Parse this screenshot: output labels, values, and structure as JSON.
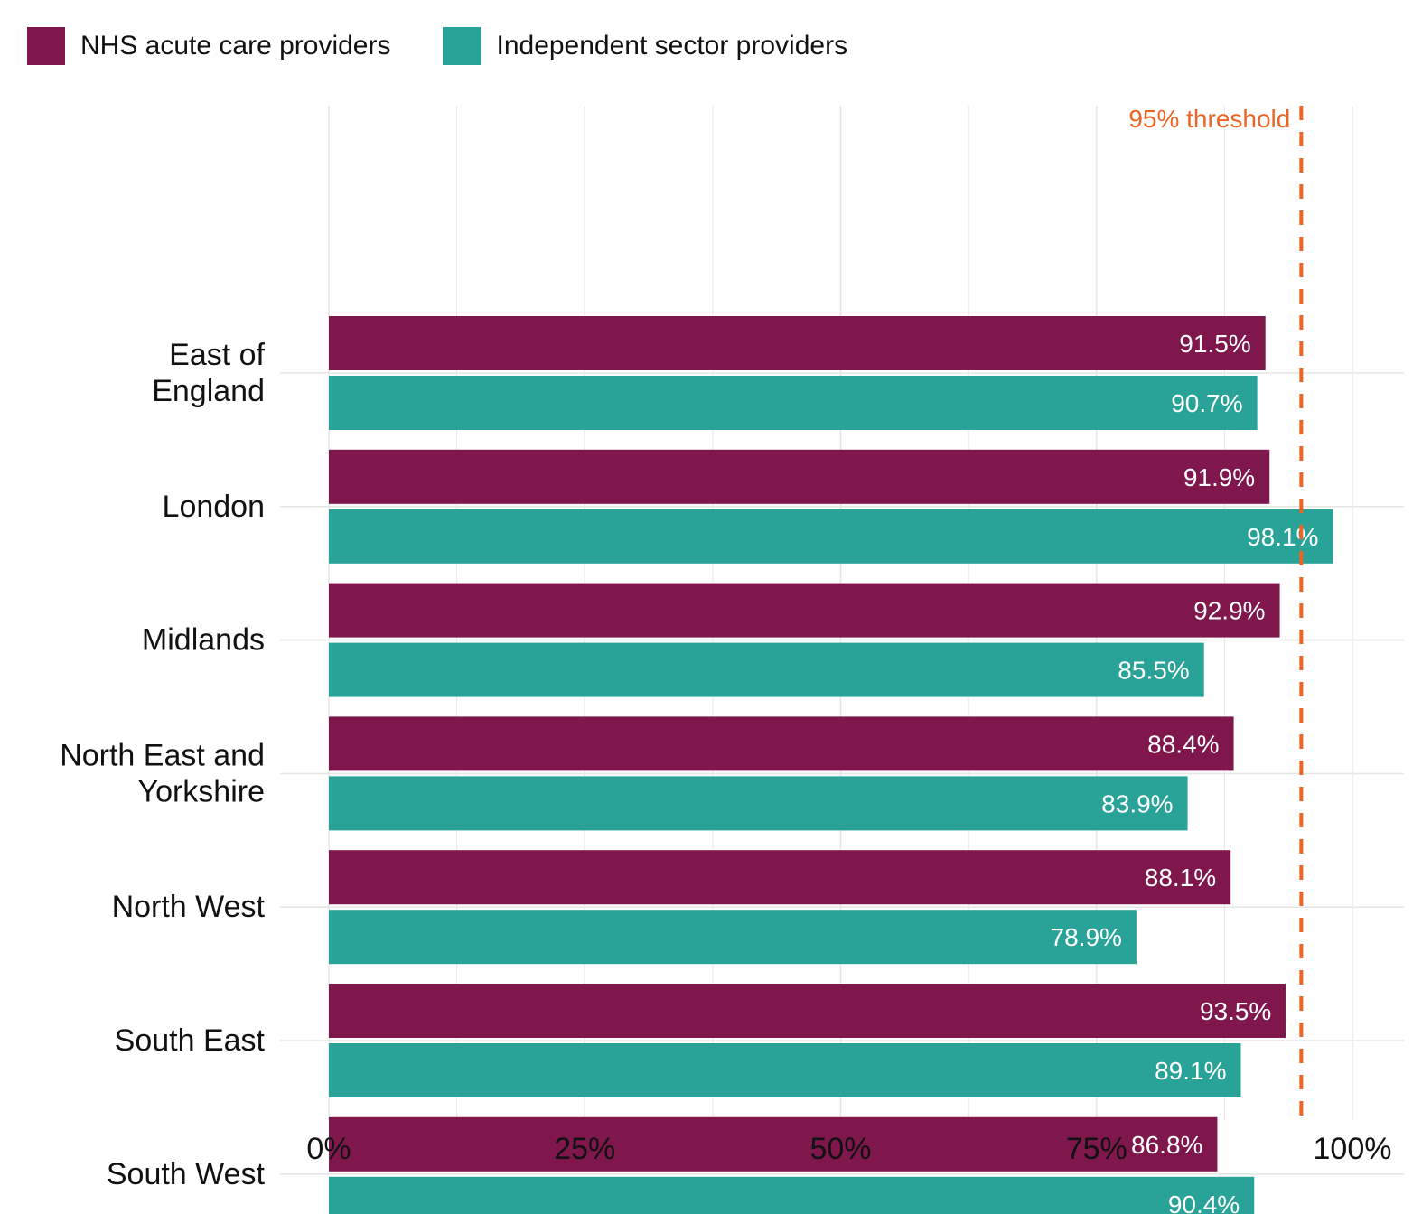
{
  "colors": {
    "nhs": "#7F174D",
    "independent": "#29A397",
    "threshold": "#EB6526",
    "grid": "#E6E6E6",
    "bar_label": "#FFFFFF",
    "text": "#111111"
  },
  "chart_data": {
    "type": "bar",
    "orientation": "horizontal",
    "categories": [
      "East of England",
      "London",
      "Midlands",
      "North East and Yorkshire",
      "North West",
      "South East",
      "South West"
    ],
    "category_lines": [
      [
        "East of",
        "England"
      ],
      [
        "London"
      ],
      [
        "Midlands"
      ],
      [
        "North East and",
        "Yorkshire"
      ],
      [
        "North West"
      ],
      [
        "South East"
      ],
      [
        "South West"
      ]
    ],
    "series": [
      {
        "name": "NHS acute care providers",
        "color": "#7F174D",
        "values": [
          91.5,
          91.9,
          92.9,
          88.4,
          88.1,
          93.5,
          86.8
        ],
        "labels": [
          "91.5%",
          "91.9%",
          "92.9%",
          "88.4%",
          "88.1%",
          "93.5%",
          "86.8%"
        ]
      },
      {
        "name": "Independent sector providers",
        "color": "#29A397",
        "values": [
          90.7,
          98.1,
          85.5,
          83.9,
          78.9,
          89.1,
          90.4
        ],
        "labels": [
          "90.7%",
          "98.1%",
          "85.5%",
          "83.9%",
          "78.9%",
          "89.1%",
          "90.4%"
        ]
      }
    ],
    "xlim": [
      0,
      100
    ],
    "x_ticks": [
      0,
      25,
      50,
      75,
      100
    ],
    "x_tick_labels": [
      "0%",
      "25%",
      "50%",
      "75%",
      "100%"
    ],
    "threshold": {
      "value": 95,
      "label": "95% threshold"
    },
    "grid": true,
    "legend_position": "top-left"
  }
}
